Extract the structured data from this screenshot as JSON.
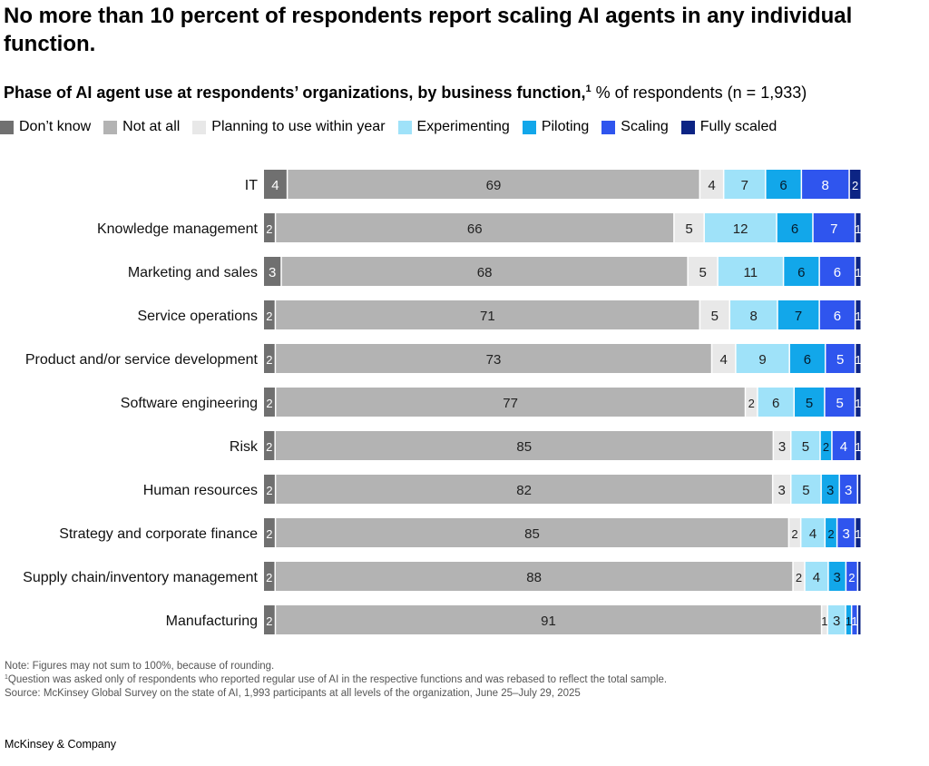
{
  "headline": "No more than 10 percent of respondents report scaling AI agents in any individual function.",
  "subtitle": {
    "bold": "Phase of AI agent use at respondents’ organizations, by business function,",
    "footnote_marker": "1",
    "regular": " % of respondents (n = 1,933)"
  },
  "chart_data": {
    "type": "bar",
    "orientation": "horizontal",
    "stacked": true,
    "title": "Phase of AI agent use at respondents’ organizations, by business function",
    "unit": "% of respondents (n = 1,933)",
    "legend_position": "top-left",
    "categories": [
      "IT",
      "Knowledge management",
      "Marketing and sales",
      "Service operations",
      "Product and/or service development",
      "Software engineering",
      "Risk",
      "Human resources",
      "Strategy and corporate finance",
      "Supply chain/inventory management",
      "Manufacturing"
    ],
    "series": [
      {
        "name": "Don’t know",
        "color": "#707070",
        "label_color": "#ffffff",
        "values": [
          4,
          2,
          3,
          2,
          2,
          2,
          2,
          2,
          2,
          2,
          2
        ]
      },
      {
        "name": "Not at all",
        "color": "#b3b3b3",
        "label_color": "#222222",
        "values": [
          69,
          66,
          68,
          71,
          73,
          77,
          85,
          82,
          85,
          88,
          91
        ]
      },
      {
        "name": "Planning to use within year",
        "color": "#e8e8e8",
        "label_color": "#222222",
        "values": [
          4,
          5,
          5,
          5,
          4,
          2,
          3,
          3,
          2,
          2,
          1
        ]
      },
      {
        "name": "Experimenting",
        "color": "#9fe2f9",
        "label_color": "#222222",
        "values": [
          7,
          12,
          11,
          8,
          9,
          6,
          5,
          5,
          4,
          4,
          3
        ]
      },
      {
        "name": "Piloting",
        "color": "#12a7ea",
        "label_color": "#051c2c",
        "values": [
          6,
          6,
          6,
          7,
          6,
          5,
          2,
          3,
          2,
          3,
          1
        ]
      },
      {
        "name": "Scaling",
        "color": "#2f55ee",
        "label_color": "#ffffff",
        "values": [
          8,
          7,
          6,
          6,
          5,
          5,
          4,
          3,
          3,
          2,
          1
        ]
      },
      {
        "name": "Fully scaled",
        "color": "#0c2484",
        "label_color": "#ffffff",
        "values": [
          2,
          1,
          1,
          1,
          1,
          1,
          1,
          0,
          1,
          0,
          0
        ]
      }
    ],
    "labels": [
      [
        "4",
        "69",
        "4",
        "7",
        "6",
        "8",
        "2"
      ],
      [
        "2",
        "66",
        "5",
        "12",
        "6",
        "7",
        "1"
      ],
      [
        "3",
        "68",
        "5",
        "11",
        "6",
        "6",
        "1"
      ],
      [
        "2",
        "71",
        "5",
        "8",
        "7",
        "6",
        "1"
      ],
      [
        "2",
        "73",
        "4",
        "9",
        "6",
        "5",
        "1"
      ],
      [
        "2",
        "77",
        "2",
        "6",
        "5",
        "5",
        "1"
      ],
      [
        "2",
        "85",
        "3",
        "5",
        "2",
        "4",
        "1"
      ],
      [
        "2",
        "82",
        "3",
        "5",
        "3",
        "3",
        ""
      ],
      [
        "2",
        "85",
        "2",
        "4",
        "2",
        "3",
        "1"
      ],
      [
        "2",
        "88",
        "2",
        "4",
        "3",
        "2",
        ""
      ],
      [
        "2",
        "91",
        "1",
        "3",
        "1",
        "1",
        ""
      ]
    ]
  },
  "notes": {
    "note": "Note: Figures may not sum to 100%, because of rounding.",
    "footnote_marker": "1",
    "footnote_1": "Question was asked only of respondents who reported regular use of AI in the respective functions and was rebased to reflect the total sample.",
    "source": "Source: McKinsey Global Survey on the state of AI, 1,993 participants at all levels of the organization, June 25–July 29, 2025"
  },
  "brand": "McKinsey & Company"
}
